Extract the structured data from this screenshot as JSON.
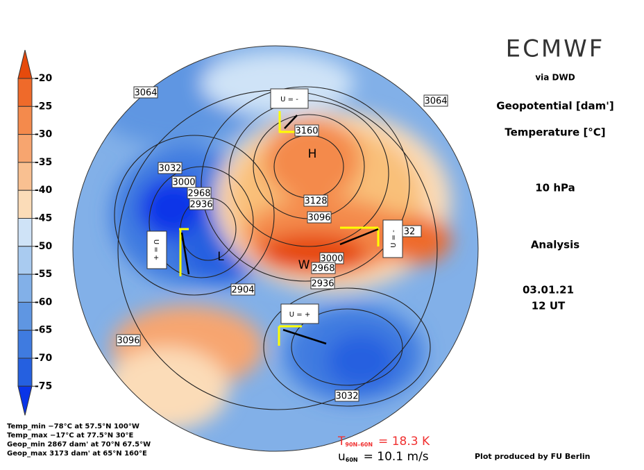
{
  "header": {
    "title": "ECMWF",
    "source": "via DWD"
  },
  "fields": [
    "Geopotential [dam']",
    "Temperature [°C]"
  ],
  "level": "10 hPa",
  "kind": "Analysis",
  "date": "03.01.21",
  "time": "12 UT",
  "colorbar": {
    "labels": [
      "-20",
      "-25",
      "-30",
      "-35",
      "-40",
      "-45",
      "-50",
      "-55",
      "-60",
      "-65",
      "-70",
      "-75"
    ],
    "colors": [
      "#e64a0c",
      "#ef6a2a",
      "#f48a4c",
      "#f7a56f",
      "#f9c091",
      "#fbdcb8",
      "#cfe3f7",
      "#a9cbf0",
      "#82b0e8",
      "#5f96e2",
      "#3f7be0",
      "#2560e0",
      "#0a35e8"
    ]
  },
  "stats": [
    "Temp_min −78°C at 57.5°N 100°W",
    "Temp_max −17°C at 77.5°N 30°E",
    "Geop_min 2867 dam' at 70°N 67.5°W",
    "Geop_max 3173 dam' at 65°N 160°E"
  ],
  "indices": [
    {
      "symbol": "T",
      "subscript": "90N–60N",
      "value": "= 18.3 K"
    },
    {
      "symbol": "u",
      "subscript": "60N",
      "value": "= 10.1 m/s"
    }
  ],
  "credit": "Plot produced by FU Berlin",
  "map": {
    "contour_labels": [
      "3064",
      "3064",
      "3032",
      "3000",
      "2968",
      "2936",
      "3160",
      "3128",
      "3096",
      "32",
      "3000",
      "2968",
      "2936",
      "2904",
      "3096",
      "3032"
    ],
    "markers": [
      "H",
      "L",
      "W"
    ],
    "annotations": [
      "U = -",
      "U = +",
      "U = -",
      "U = +"
    ]
  }
}
